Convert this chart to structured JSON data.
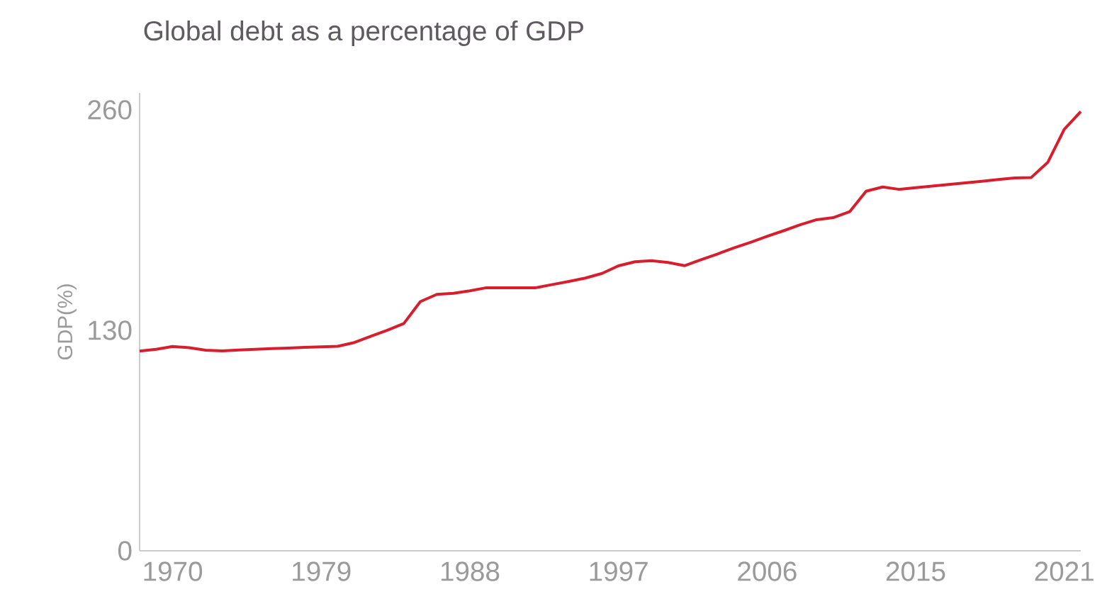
{
  "chart_data": {
    "type": "line",
    "title": "Global debt as a percentage of GDP",
    "ylabel": "GDP(%)",
    "categories": [
      null,
      null,
      "1970",
      null,
      null,
      null,
      null,
      null,
      null,
      null,
      null,
      "1979",
      null,
      null,
      null,
      null,
      null,
      null,
      null,
      null,
      "1988",
      null,
      null,
      null,
      null,
      null,
      null,
      null,
      null,
      "1997",
      null,
      null,
      null,
      null,
      null,
      null,
      null,
      null,
      "2006",
      null,
      null,
      null,
      null,
      null,
      null,
      null,
      null,
      "2015",
      null,
      null,
      null,
      null,
      null,
      null,
      null,
      null,
      "2021",
      null
    ],
    "values": [
      117.8,
      118.8,
      120.5,
      119.7,
      118.3,
      117.9,
      118.4,
      118.8,
      119.2,
      119.5,
      119.9,
      120.3,
      120.6,
      122.8,
      126.5,
      130.0,
      134.0,
      146.9,
      151.2,
      151.8,
      153.3,
      155.1,
      155.1,
      155.1,
      155.1,
      157.0,
      158.8,
      160.8,
      163.5,
      168.0,
      170.4,
      171.0,
      170.0,
      168.1,
      171.6,
      175.0,
      178.6,
      181.9,
      185.4,
      188.7,
      192.2,
      195.2,
      196.4,
      199.9,
      212.0,
      214.5,
      213.1,
      214.1,
      215.0,
      216.0,
      216.9,
      217.9,
      218.9,
      219.8,
      220.1,
      229.0,
      248.5,
      259.0
    ],
    "color": "#d81e2c",
    "line_style": "solid",
    "ylim": [
      0,
      270
    ],
    "yticks": [
      0,
      130,
      260
    ]
  }
}
